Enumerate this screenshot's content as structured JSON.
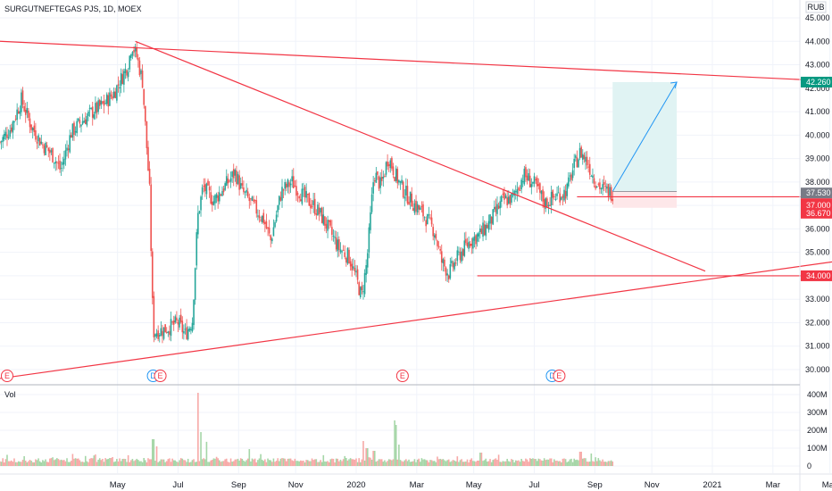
{
  "header": {
    "symbol": "SURGUTNEFTEGAS PJS, 1D, MOEX",
    "currency": "RUB"
  },
  "volume_pane": {
    "label": "Vol"
  },
  "colors": {
    "up": "#26a69a",
    "down": "#ef5350",
    "trendline": "#f23645",
    "target": "#2196f3",
    "target_zone": "#e0f3f3",
    "tag_green": "#089981",
    "tag_gray": "#787b86",
    "tag_red": "#f23645"
  },
  "chart_data": {
    "type": "candlestick",
    "title": "SURGUTNEFTEGAS PJS, 1D, MOEX",
    "price_axis": {
      "ylim": [
        29.5,
        45.4
      ],
      "ticks": [
        "30.000",
        "31.000",
        "32.000",
        "33.000",
        "34.000",
        "35.000",
        "36.000",
        "37.000",
        "38.000",
        "39.000",
        "40.000",
        "41.000",
        "42.000",
        "43.000",
        "44.000",
        "45.000"
      ]
    },
    "volume_axis": {
      "ylim": [
        0,
        430
      ],
      "ticks": [
        "0",
        "100M",
        "200M",
        "300M",
        "400M"
      ]
    },
    "time_axis": {
      "labels": [
        {
          "t": 2019.33,
          "label": "May"
        },
        {
          "t": 2019.5,
          "label": "Jul"
        },
        {
          "t": 2019.67,
          "label": "Sep"
        },
        {
          "t": 2019.83,
          "label": "Nov"
        },
        {
          "t": 2020.0,
          "label": "2020"
        },
        {
          "t": 2020.17,
          "label": "Mar"
        },
        {
          "t": 2020.33,
          "label": "May"
        },
        {
          "t": 2020.5,
          "label": "Jul"
        },
        {
          "t": 2020.67,
          "label": "Sep"
        },
        {
          "t": 2020.83,
          "label": "Nov"
        },
        {
          "t": 2021.0,
          "label": "2021"
        },
        {
          "t": 2021.17,
          "label": "Mar"
        },
        {
          "t": 2021.33,
          "label": "May"
        }
      ]
    },
    "price_path": [
      [
        2019.0,
        39.7
      ],
      [
        2019.03,
        40.3
      ],
      [
        2019.06,
        41.5
      ],
      [
        2019.09,
        40.3
      ],
      [
        2019.12,
        39.6
      ],
      [
        2019.15,
        39.1
      ],
      [
        2019.17,
        38.5
      ],
      [
        2019.2,
        40.1
      ],
      [
        2019.23,
        40.6
      ],
      [
        2019.26,
        41.0
      ],
      [
        2019.29,
        41.3
      ],
      [
        2019.32,
        41.8
      ],
      [
        2019.34,
        42.4
      ],
      [
        2019.36,
        43.0
      ],
      [
        2019.37,
        43.9
      ],
      [
        2019.385,
        43.3
      ],
      [
        2019.4,
        42.3
      ],
      [
        2019.42,
        37.6
      ],
      [
        2019.43,
        31.6
      ],
      [
        2019.46,
        31.7
      ],
      [
        2019.5,
        32.0
      ],
      [
        2019.52,
        31.5
      ],
      [
        2019.54,
        32.1
      ],
      [
        2019.555,
        36.5
      ],
      [
        2019.57,
        37.8
      ],
      [
        2019.6,
        37.2
      ],
      [
        2019.63,
        37.8
      ],
      [
        2019.66,
        38.4
      ],
      [
        2019.68,
        37.6
      ],
      [
        2019.71,
        37.0
      ],
      [
        2019.74,
        36.4
      ],
      [
        2019.76,
        35.5
      ],
      [
        2019.79,
        37.6
      ],
      [
        2019.82,
        38.0
      ],
      [
        2019.85,
        37.4
      ],
      [
        2019.88,
        37.0
      ],
      [
        2019.9,
        36.6
      ],
      [
        2019.93,
        35.8
      ],
      [
        2019.95,
        35.2
      ],
      [
        2019.98,
        34.8
      ],
      [
        2020.0,
        33.9
      ],
      [
        2020.015,
        33.1
      ],
      [
        2020.03,
        34.6
      ],
      [
        2020.05,
        38.4
      ],
      [
        2020.07,
        37.8
      ],
      [
        2020.09,
        39.1
      ],
      [
        2020.11,
        38.3
      ],
      [
        2020.13,
        37.7
      ],
      [
        2020.16,
        37.1
      ],
      [
        2020.19,
        36.6
      ],
      [
        2020.22,
        35.9
      ],
      [
        2020.24,
        34.6
      ],
      [
        2020.26,
        34.1
      ],
      [
        2020.29,
        34.9
      ],
      [
        2020.32,
        35.5
      ],
      [
        2020.35,
        35.8
      ],
      [
        2020.38,
        36.4
      ],
      [
        2020.41,
        37.2
      ],
      [
        2020.44,
        37.3
      ],
      [
        2020.47,
        38.3
      ],
      [
        2020.5,
        37.9
      ],
      [
        2020.53,
        37.1
      ],
      [
        2020.56,
        37.4
      ],
      [
        2020.59,
        37.6
      ],
      [
        2020.61,
        38.6
      ],
      [
        2020.63,
        39.3
      ],
      [
        2020.65,
        38.8
      ],
      [
        2020.67,
        38.1
      ],
      [
        2020.69,
        37.7
      ],
      [
        2020.72,
        37.53
      ]
    ],
    "volume_bars": {
      "start": 2019.0,
      "end": 2020.72,
      "baseline": [
        20,
        45
      ],
      "spikes": [
        {
          "t": 2019.43,
          "v": 150
        },
        {
          "t": 2019.44,
          "v": 110
        },
        {
          "t": 2019.555,
          "v": 410
        },
        {
          "t": 2019.565,
          "v": 190
        },
        {
          "t": 2019.58,
          "v": 120
        },
        {
          "t": 2019.7,
          "v": 95
        },
        {
          "t": 2020.02,
          "v": 140
        },
        {
          "t": 2020.03,
          "v": 100
        },
        {
          "t": 2020.05,
          "v": 85
        },
        {
          "t": 2020.11,
          "v": 230
        },
        {
          "t": 2020.12,
          "v": 120
        },
        {
          "t": 2020.35,
          "v": 75
        },
        {
          "t": 2020.63,
          "v": 80
        },
        {
          "t": 2020.66,
          "v": 70
        }
      ]
    },
    "drawings": {
      "upper_resistance": {
        "from": [
          2019.0,
          44.0
        ],
        "to": [
          2021.48,
          42.2
        ]
      },
      "descending_trendline": {
        "from": [
          2019.38,
          44.0
        ],
        "to": [
          2020.98,
          34.2
        ]
      },
      "lower_support": {
        "from": [
          2018.99,
          29.6
        ],
        "to": [
          2021.48,
          34.9
        ]
      },
      "horizontal_34": {
        "from": [
          2020.34,
          34.0
        ],
        "to": [
          2021.48,
          34.0
        ]
      },
      "horizontal_3737": {
        "from": [
          2020.62,
          37.37
        ],
        "to": [
          2021.48,
          37.37
        ]
      },
      "target_zone": {
        "from": [
          2020.72,
          37.6
        ],
        "to": [
          2020.9,
          42.26
        ]
      },
      "target_arrow": {
        "from": [
          2020.72,
          37.6
        ],
        "to": [
          2020.9,
          42.26
        ]
      }
    },
    "price_tags": [
      {
        "value": 42.26,
        "label": "42.260",
        "color": "#089981"
      },
      {
        "value": 37.53,
        "label": "37.530",
        "color": "#787b86"
      },
      {
        "value": 37.53,
        "label": "37.530",
        "color": "#f23645",
        "offset": 1
      },
      {
        "value": 37.0,
        "label": "37.000",
        "color": "#f23645"
      },
      {
        "value": 36.67,
        "label": "36.670",
        "color": "#f23645"
      },
      {
        "value": 34.0,
        "label": "34.000",
        "color": "#f23645"
      }
    ],
    "event_markers": [
      {
        "t": 2019.02,
        "label": "E",
        "color": "#f23645"
      },
      {
        "t": 2019.43,
        "label": "D",
        "color": "#2196f3"
      },
      {
        "t": 2019.45,
        "label": "E",
        "color": "#f23645"
      },
      {
        "t": 2020.13,
        "label": "E",
        "color": "#f23645"
      },
      {
        "t": 2020.55,
        "label": "D",
        "color": "#2196f3"
      },
      {
        "t": 2020.57,
        "label": "E",
        "color": "#f23645"
      }
    ]
  }
}
